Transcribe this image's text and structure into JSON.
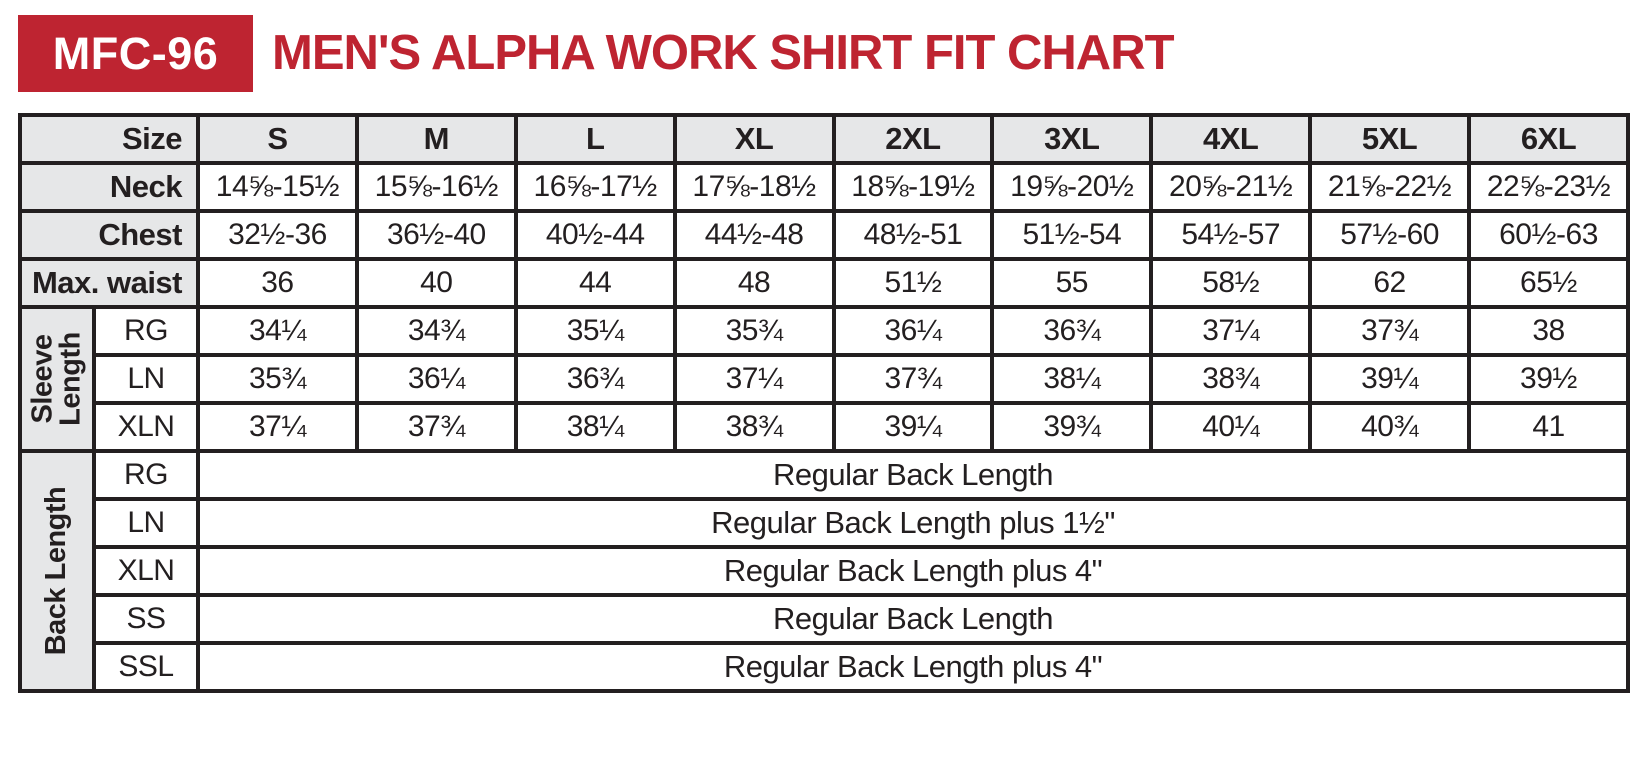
{
  "page": {
    "badge": "MFC-96",
    "title": "MEN'S ALPHA WORK SHIRT FIT CHART"
  },
  "colors": {
    "accent_red": "#BE2431",
    "header_gray": "#E6E7E8",
    "border_black": "#231F20"
  },
  "chart_data": {
    "type": "table",
    "title": "MEN'S ALPHA WORK SHIRT FIT CHART",
    "product_code": "MFC-96",
    "size_header_label": "Size",
    "sizes": [
      "S",
      "M",
      "L",
      "XL",
      "2XL",
      "3XL",
      "4XL",
      "5XL",
      "6XL"
    ],
    "measurement_rows": [
      {
        "label": "Neck",
        "values": [
          "14⅝-15½",
          "15⅝-16½",
          "16⅝-17½",
          "17⅝-18½",
          "18⅝-19½",
          "19⅝-20½",
          "20⅝-21½",
          "21⅝-22½",
          "22⅝-23½"
        ]
      },
      {
        "label": "Chest",
        "values": [
          "32½-36",
          "36½-40",
          "40½-44",
          "44½-48",
          "48½-51",
          "51½-54",
          "54½-57",
          "57½-60",
          "60½-63"
        ]
      },
      {
        "label": "Max. waist",
        "values": [
          "36",
          "40",
          "44",
          "48",
          "51½",
          "55",
          "58½",
          "62",
          "65½"
        ]
      }
    ],
    "groups": [
      {
        "label": "Sleeve Length",
        "rows": [
          {
            "label": "RG",
            "values": [
              "34¼",
              "34¾",
              "35¼",
              "35¾",
              "36¼",
              "36¾",
              "37¼",
              "37¾",
              "38"
            ]
          },
          {
            "label": "LN",
            "values": [
              "35¾",
              "36¼",
              "36¾",
              "37¼",
              "37¾",
              "38¼",
              "38¾",
              "39¼",
              "39½"
            ]
          },
          {
            "label": "XLN",
            "values": [
              "37¼",
              "37¾",
              "38¼",
              "38¾",
              "39¼",
              "39¾",
              "40¼",
              "40¾",
              "41"
            ]
          }
        ]
      },
      {
        "label": "Back Length",
        "rows": [
          {
            "label": "RG",
            "value": "Regular Back Length"
          },
          {
            "label": "LN",
            "value": "Regular Back Length plus 1½\""
          },
          {
            "label": "XLN",
            "value": "Regular Back Length plus 4\""
          },
          {
            "label": "SS",
            "value": "Regular Back Length"
          },
          {
            "label": "SSL",
            "value": "Regular Back Length plus 4\""
          }
        ]
      }
    ]
  }
}
